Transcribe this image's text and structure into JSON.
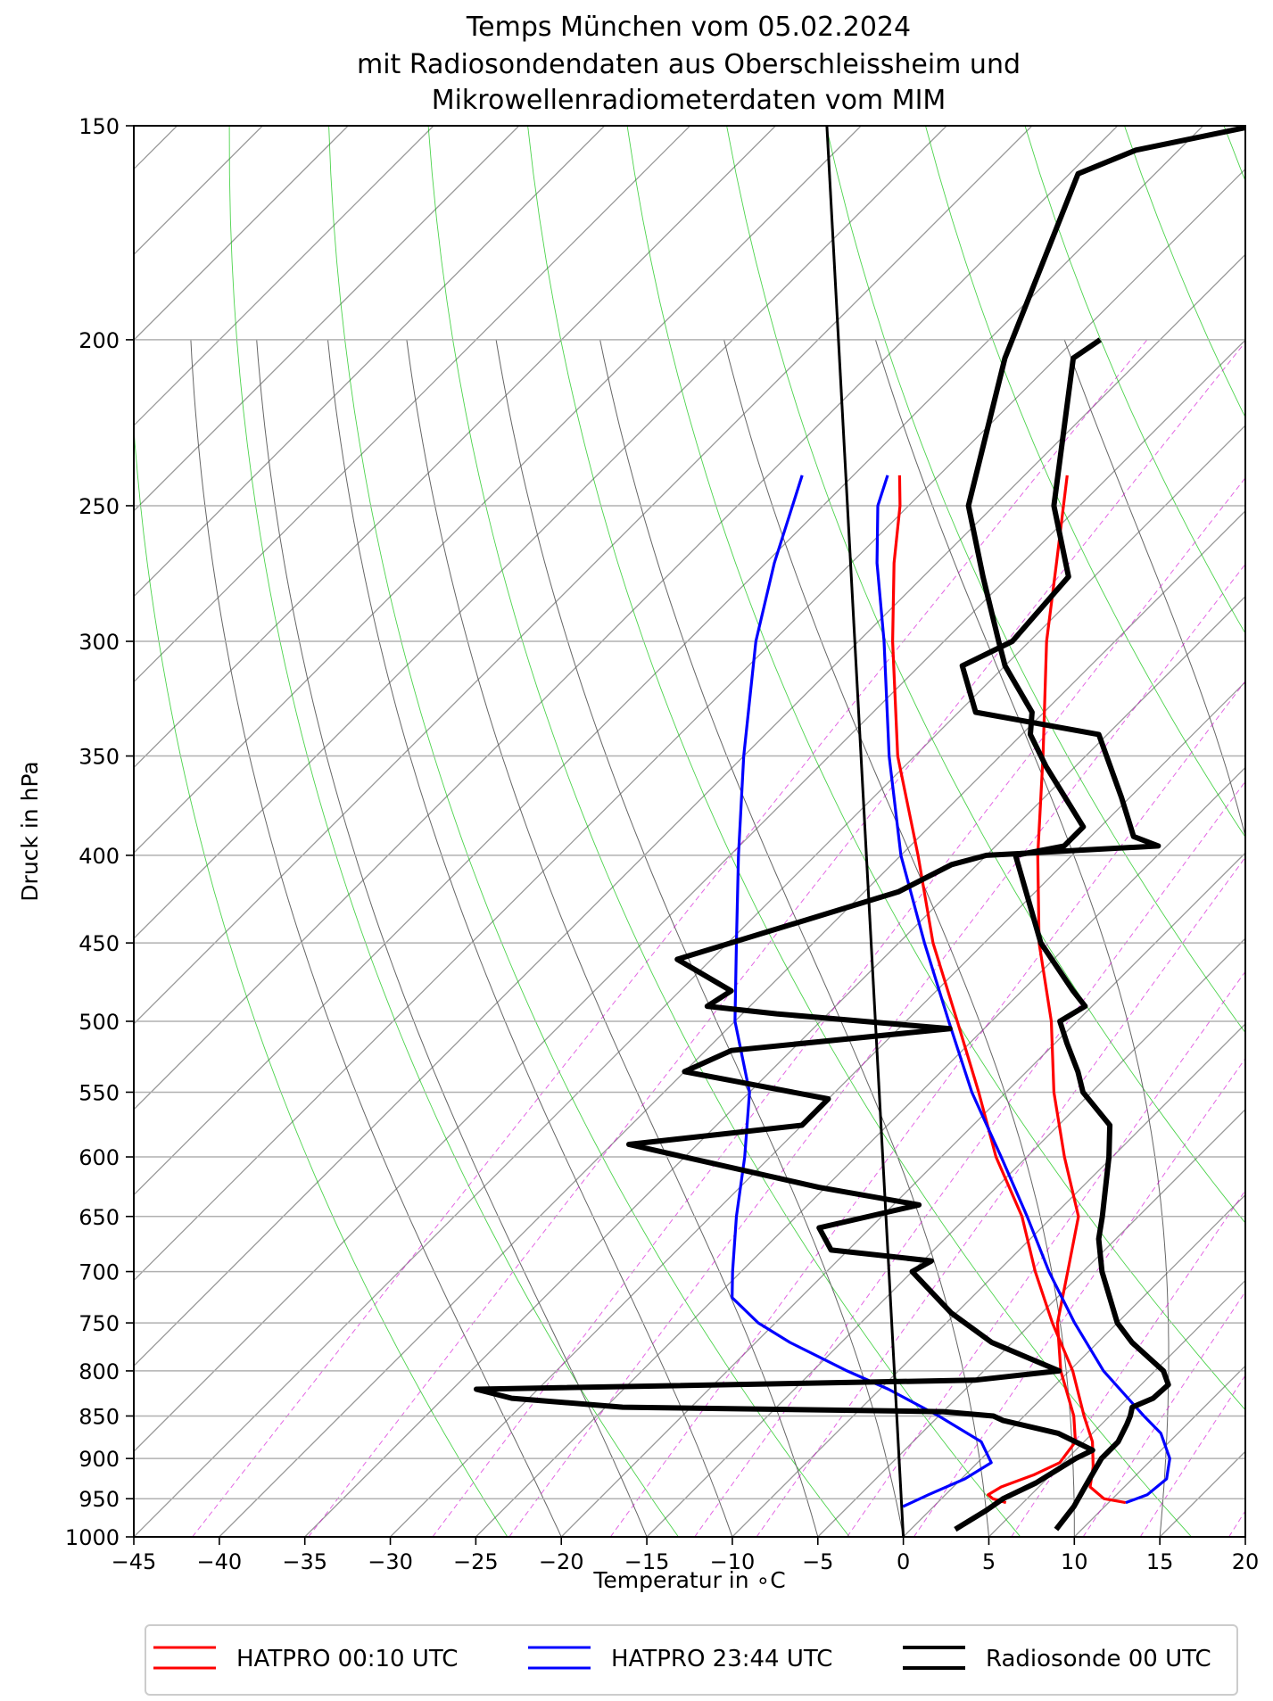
{
  "chart_data": {
    "type": "line",
    "title_lines": [
      "Temps München vom 05.02.2024",
      "mit Radiosondendaten aus Oberschleissheim und",
      "Mikrowellenradiometerdaten vom MIM"
    ],
    "xlabel": "Temperatur in ∘C",
    "ylabel": "Druck in hPa",
    "x_ticks": [
      -45,
      -40,
      -35,
      -30,
      -25,
      -20,
      -15,
      -10,
      -5,
      0,
      5,
      10,
      15,
      20
    ],
    "x_tick_labels": [
      "−45",
      "−40",
      "−35",
      "−30",
      "−25",
      "−20",
      "−15",
      "−10",
      "−5",
      "0",
      "5",
      "10",
      "15",
      "20"
    ],
    "y_ticks": [
      150,
      200,
      250,
      300,
      350,
      400,
      450,
      500,
      550,
      600,
      650,
      700,
      750,
      800,
      850,
      900,
      950,
      1000
    ],
    "y_tick_labels": [
      "150",
      "200",
      "250",
      "300",
      "350",
      "400",
      "450",
      "500",
      "550",
      "600",
      "650",
      "700",
      "750",
      "800",
      "850",
      "900",
      "950",
      "1000"
    ],
    "xlim": [
      -45,
      20
    ],
    "ylim": [
      1000,
      150
    ],
    "y_scale": "log",
    "skew_t": true,
    "grid": true,
    "legend_position": "bottom",
    "colors": {
      "hatpro_0010": "#ff0000",
      "hatpro_2344": "#0000ff",
      "radiosonde": "#000000",
      "dry_adiabat": "#00c000",
      "mixing_ratio": "#d000d0",
      "isotherm": "#999999",
      "moist_adiabat": "#666666"
    },
    "series": [
      {
        "name": "HATPRO 00:10 UTC",
        "kind": "temperature",
        "points": [
          {
            "p": 955,
            "t": 4.0
          },
          {
            "p": 950,
            "t": 3.0
          },
          {
            "p": 945,
            "t": 2.5
          },
          {
            "p": 935,
            "t": 2.8
          },
          {
            "p": 920,
            "t": 4.0
          },
          {
            "p": 905,
            "t": 4.8
          },
          {
            "p": 880,
            "t": 4.5
          },
          {
            "p": 850,
            "t": 2.9
          },
          {
            "p": 800,
            "t": -0.5
          },
          {
            "p": 750,
            "t": -3.5
          },
          {
            "p": 700,
            "t": -5.9
          },
          {
            "p": 650,
            "t": -8.5
          },
          {
            "p": 600,
            "t": -12.8
          },
          {
            "p": 550,
            "t": -17.2
          },
          {
            "p": 500,
            "t": -21.5
          },
          {
            "p": 450,
            "t": -26.8
          },
          {
            "p": 400,
            "t": -32.0
          },
          {
            "p": 350,
            "t": -37.5
          },
          {
            "p": 300,
            "t": -44.0
          },
          {
            "p": 270,
            "t": -48.0
          },
          {
            "p": 240,
            "t": -52.5
          }
        ]
      },
      {
        "name": "HATPRO 23:44 UTC",
        "kind": "temperature",
        "points": [
          {
            "p": 960,
            "t": -1.8
          },
          {
            "p": 945,
            "t": -1.0
          },
          {
            "p": 925,
            "t": 0.2
          },
          {
            "p": 905,
            "t": 0.8
          },
          {
            "p": 880,
            "t": -1.0
          },
          {
            "p": 850,
            "t": -5.0
          },
          {
            "p": 820,
            "t": -9.5
          },
          {
            "p": 800,
            "t": -13.0
          },
          {
            "p": 770,
            "t": -18.0
          },
          {
            "p": 750,
            "t": -21.0
          },
          {
            "p": 725,
            "t": -24.0
          },
          {
            "p": 700,
            "t": -25.5
          },
          {
            "p": 650,
            "t": -28.5
          },
          {
            "p": 600,
            "t": -31.5
          },
          {
            "p": 550,
            "t": -35.0
          },
          {
            "p": 500,
            "t": -40.0
          },
          {
            "p": 450,
            "t": -44.5
          },
          {
            "p": 400,
            "t": -49.5
          },
          {
            "p": 350,
            "t": -55.0
          },
          {
            "p": 300,
            "t": -61.0
          },
          {
            "p": 270,
            "t": -64.5
          },
          {
            "p": 240,
            "t": -68.0
          }
        ]
      },
      {
        "name": "HATPRO 00:10 UTC",
        "kind": "dewpoint",
        "legend": false,
        "points": [
          {
            "p": 955,
            "t": 11.0
          },
          {
            "p": 950,
            "t": 9.5
          },
          {
            "p": 935,
            "t": 8.0
          },
          {
            "p": 910,
            "t": 7.0
          },
          {
            "p": 880,
            "t": 5.5
          },
          {
            "p": 850,
            "t": 3.5
          },
          {
            "p": 800,
            "t": 0.2
          },
          {
            "p": 750,
            "t": -3.8
          },
          {
            "p": 700,
            "t": -7.8
          },
          {
            "p": 650,
            "t": -11.8
          },
          {
            "p": 600,
            "t": -16.8
          },
          {
            "p": 550,
            "t": -21.6
          },
          {
            "p": 500,
            "t": -27.0
          },
          {
            "p": 450,
            "t": -33.0
          },
          {
            "p": 400,
            "t": -39.0
          },
          {
            "p": 350,
            "t": -46.0
          },
          {
            "p": 300,
            "t": -53.0
          },
          {
            "p": 270,
            "t": -57.5
          },
          {
            "p": 250,
            "t": -60.5
          },
          {
            "p": 240,
            "t": -62.3
          }
        ]
      },
      {
        "name": "HATPRO 23:44 UTC",
        "kind": "dewpoint",
        "legend": false,
        "points": [
          {
            "p": 955,
            "t": 11.0
          },
          {
            "p": 945,
            "t": 11.8
          },
          {
            "p": 925,
            "t": 12.0
          },
          {
            "p": 900,
            "t": 11.0
          },
          {
            "p": 870,
            "t": 9.0
          },
          {
            "p": 850,
            "t": 7.0
          },
          {
            "p": 800,
            "t": 2.0
          },
          {
            "p": 750,
            "t": -2.5
          },
          {
            "p": 700,
            "t": -7.0
          },
          {
            "p": 650,
            "t": -11.5
          },
          {
            "p": 600,
            "t": -16.5
          },
          {
            "p": 550,
            "t": -22.0
          },
          {
            "p": 500,
            "t": -27.5
          },
          {
            "p": 450,
            "t": -33.5
          },
          {
            "p": 400,
            "t": -40.0
          },
          {
            "p": 350,
            "t": -46.5
          },
          {
            "p": 300,
            "t": -53.5
          },
          {
            "p": 270,
            "t": -58.5
          },
          {
            "p": 250,
            "t": -61.8
          },
          {
            "p": 240,
            "t": -63.0
          }
        ]
      },
      {
        "name": "Radiosonde 00 UTC",
        "kind": "temperature",
        "points": [
          {
            "p": 990,
            "t": 2.6
          },
          {
            "p": 965,
            "t": 3.3
          },
          {
            "p": 950,
            "t": 3.6
          },
          {
            "p": 930,
            "t": 4.6
          },
          {
            "p": 900,
            "t": 5.5
          },
          {
            "p": 890,
            "t": 6.0
          },
          {
            "p": 870,
            "t": 3.0
          },
          {
            "p": 855,
            "t": -1.0
          },
          {
            "p": 850,
            "t": -1.8
          },
          {
            "p": 845,
            "t": -5.0
          },
          {
            "p": 840,
            "t": -24.0
          },
          {
            "p": 830,
            "t": -31.0
          },
          {
            "p": 820,
            "t": -33.6
          },
          {
            "p": 810,
            "t": -5.0
          },
          {
            "p": 800,
            "t": -0.6
          },
          {
            "p": 770,
            "t": -6.2
          },
          {
            "p": 740,
            "t": -10.3
          },
          {
            "p": 700,
            "t": -15.0
          },
          {
            "p": 690,
            "t": -14.5
          },
          {
            "p": 680,
            "t": -21.0
          },
          {
            "p": 660,
            "t": -23.0
          },
          {
            "p": 640,
            "t": -18.5
          },
          {
            "p": 625,
            "t": -25.4
          },
          {
            "p": 590,
            "t": -39.0
          },
          {
            "p": 575,
            "t": -30.0
          },
          {
            "p": 555,
            "t": -30.0
          },
          {
            "p": 535,
            "t": -40.0
          },
          {
            "p": 520,
            "t": -38.5
          },
          {
            "p": 505,
            "t": -27.0
          },
          {
            "p": 495,
            "t": -38.0
          },
          {
            "p": 490,
            "t": -42.5
          },
          {
            "p": 480,
            "t": -42.0
          },
          {
            "p": 460,
            "t": -47.0
          },
          {
            "p": 420,
            "t": -38.0
          },
          {
            "p": 405,
            "t": -36.5
          },
          {
            "p": 400,
            "t": -35.0
          },
          {
            "p": 395,
            "t": -25.5
          },
          {
            "p": 390,
            "t": -27.5
          },
          {
            "p": 370,
            "t": -30.5
          },
          {
            "p": 340,
            "t": -35.5
          },
          {
            "p": 330,
            "t": -44.0
          },
          {
            "p": 310,
            "t": -47.5
          },
          {
            "p": 300,
            "t": -46.0
          },
          {
            "p": 275,
            "t": -46.5
          },
          {
            "p": 250,
            "t": -51.5
          },
          {
            "p": 205,
            "t": -59.0
          },
          {
            "p": 200,
            "t": -58.5
          }
        ]
      },
      {
        "name": "Radiosonde 00 UTC",
        "kind": "dewpoint",
        "legend": false,
        "points": [
          {
            "p": 990,
            "t": 8.5
          },
          {
            "p": 960,
            "t": 8.2
          },
          {
            "p": 930,
            "t": 7.6
          },
          {
            "p": 900,
            "t": 7.0
          },
          {
            "p": 880,
            "t": 7.0
          },
          {
            "p": 860,
            "t": 6.5
          },
          {
            "p": 850,
            "t": 6.2
          },
          {
            "p": 840,
            "t": 5.8
          },
          {
            "p": 830,
            "t": 6.5
          },
          {
            "p": 815,
            "t": 6.6
          },
          {
            "p": 800,
            "t": 5.5
          },
          {
            "p": 770,
            "t": 2.0
          },
          {
            "p": 750,
            "t": 0.0
          },
          {
            "p": 700,
            "t": -3.9
          },
          {
            "p": 670,
            "t": -6.0
          },
          {
            "p": 650,
            "t": -7.1
          },
          {
            "p": 600,
            "t": -10.2
          },
          {
            "p": 575,
            "t": -12.0
          },
          {
            "p": 550,
            "t": -15.5
          },
          {
            "p": 535,
            "t": -17.0
          },
          {
            "p": 515,
            "t": -19.3
          },
          {
            "p": 500,
            "t": -21.0
          },
          {
            "p": 490,
            "t": -20.4
          },
          {
            "p": 480,
            "t": -22.0
          },
          {
            "p": 450,
            "t": -26.7
          },
          {
            "p": 400,
            "t": -33.3
          },
          {
            "p": 395,
            "t": -31.0
          },
          {
            "p": 385,
            "t": -31.0
          },
          {
            "p": 355,
            "t": -36.7
          },
          {
            "p": 340,
            "t": -39.5
          },
          {
            "p": 330,
            "t": -40.7
          },
          {
            "p": 310,
            "t": -45.0
          },
          {
            "p": 300,
            "t": -46.8
          },
          {
            "p": 275,
            "t": -51.5
          },
          {
            "p": 250,
            "t": -56.5
          },
          {
            "p": 205,
            "t": -63.0
          },
          {
            "p": 160,
            "t": -69.5
          },
          {
            "p": 155,
            "t": -67.5
          },
          {
            "p": 150,
            "t": -62.0
          }
        ]
      },
      {
        "name": "",
        "kind": "parcel",
        "legend": false,
        "points": [
          {
            "p": 1000,
            "t": 0.0
          },
          {
            "p": 150,
            "t": -87.0
          }
        ]
      }
    ],
    "legend": [
      {
        "label": "HATPRO 00:10 UTC",
        "color": "#ff0000"
      },
      {
        "label": "HATPRO 23:44 UTC",
        "color": "#0000ff"
      },
      {
        "label": "Radiosonde 00 UTC",
        "color": "#000000"
      }
    ]
  }
}
